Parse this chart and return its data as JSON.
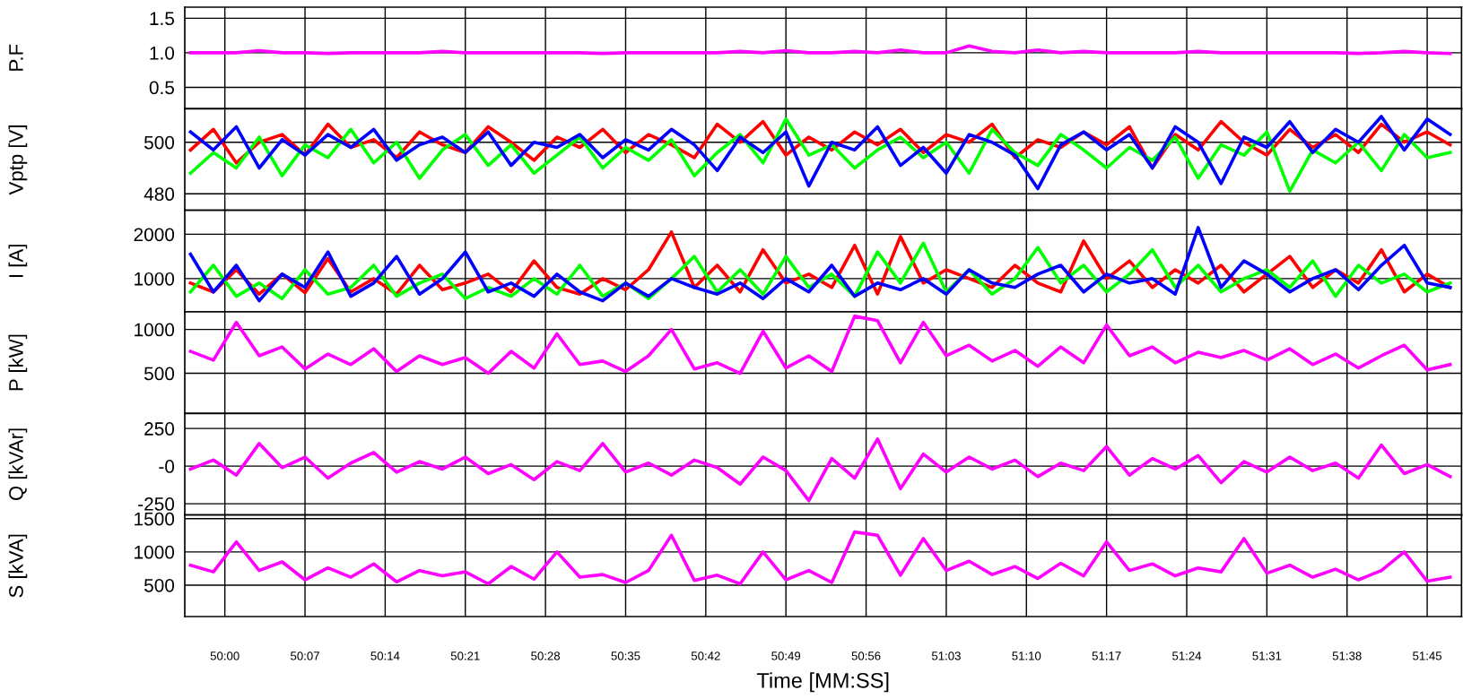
{
  "chart_data": [
    {
      "type": "line",
      "ylabel": "P.F",
      "x": [
        2997,
        2999,
        3001,
        3003,
        3005,
        3007,
        3009,
        3011,
        3013,
        3015,
        3017,
        3019,
        3021,
        3023,
        3025,
        3027,
        3029,
        3031,
        3033,
        3035,
        3037,
        3039,
        3041,
        3043,
        3045,
        3047,
        3049,
        3051,
        3053,
        3055,
        3057,
        3059,
        3061,
        3063,
        3065,
        3067,
        3069,
        3071,
        3073,
        3075,
        3077,
        3079,
        3081,
        3083,
        3085,
        3087,
        3089,
        3091,
        3093,
        3095,
        3097,
        3099,
        3101,
        3103,
        3105,
        3107
      ],
      "xlim": [
        2996.5,
        3108
      ],
      "xticks": [
        {
          "value": 3000,
          "label": null
        },
        {
          "value": 3007,
          "label": null
        },
        {
          "value": 3014,
          "label": null
        },
        {
          "value": 3021,
          "label": null
        },
        {
          "value": 3028,
          "label": null
        },
        {
          "value": 3035,
          "label": null
        },
        {
          "value": 3042,
          "label": null
        },
        {
          "value": 3049,
          "label": null
        },
        {
          "value": 3056,
          "label": null
        },
        {
          "value": 3063,
          "label": null
        },
        {
          "value": 3070,
          "label": null
        },
        {
          "value": 3077,
          "label": null
        },
        {
          "value": 3084,
          "label": null
        },
        {
          "value": 3091,
          "label": null
        },
        {
          "value": 3098,
          "label": null
        },
        {
          "value": 3105,
          "label": null
        }
      ],
      "ylim": [
        0.19,
        1.66
      ],
      "yticks": [
        0.5,
        {
          "value": 1,
          "label": "1.0"
        },
        1.5
      ],
      "grid": true,
      "tick_labels": "y",
      "series": [
        {
          "color": "#ff00ff",
          "values": [
            1.0,
            1.0,
            1.0,
            1.03,
            1.0,
            1.0,
            0.99,
            1.0,
            1.0,
            1.0,
            1.0,
            1.02,
            1.0,
            1.0,
            1.0,
            1.0,
            1.0,
            1.0,
            0.99,
            1.0,
            1.0,
            1.0,
            1.0,
            1.0,
            1.02,
            1.0,
            1.03,
            1.0,
            1.0,
            1.02,
            1.0,
            1.04,
            1.0,
            1.0,
            1.1,
            1.02,
            1.0,
            1.04,
            1.0,
            1.02,
            1.0,
            1.0,
            1.0,
            1.0,
            1.02,
            1.0,
            1.0,
            1.0,
            1.0,
            1.0,
            1.0,
            0.99,
            1.0,
            1.02,
            1.0,
            0.99
          ]
        }
      ]
    },
    {
      "type": "line",
      "ylabel": "Vptp [V]",
      "x": [
        2997,
        2999,
        3001,
        3003,
        3005,
        3007,
        3009,
        3011,
        3013,
        3015,
        3017,
        3019,
        3021,
        3023,
        3025,
        3027,
        3029,
        3031,
        3033,
        3035,
        3037,
        3039,
        3041,
        3043,
        3045,
        3047,
        3049,
        3051,
        3053,
        3055,
        3057,
        3059,
        3061,
        3063,
        3065,
        3067,
        3069,
        3071,
        3073,
        3075,
        3077,
        3079,
        3081,
        3083,
        3085,
        3087,
        3089,
        3091,
        3093,
        3095,
        3097,
        3099,
        3101,
        3103,
        3105,
        3107
      ],
      "xlim": [
        2996.5,
        3108
      ],
      "xticks": [
        {
          "value": 3000,
          "label": null
        },
        {
          "value": 3007,
          "label": null
        },
        {
          "value": 3014,
          "label": null
        },
        {
          "value": 3021,
          "label": null
        },
        {
          "value": 3028,
          "label": null
        },
        {
          "value": 3035,
          "label": null
        },
        {
          "value": 3042,
          "label": null
        },
        {
          "value": 3049,
          "label": null
        },
        {
          "value": 3056,
          "label": null
        },
        {
          "value": 3063,
          "label": null
        },
        {
          "value": 3070,
          "label": null
        },
        {
          "value": 3077,
          "label": null
        },
        {
          "value": 3084,
          "label": null
        },
        {
          "value": 3091,
          "label": null
        },
        {
          "value": 3098,
          "label": null
        },
        {
          "value": 3105,
          "label": null
        }
      ],
      "ylim": [
        473.6,
        513
      ],
      "yticks": [
        480,
        500
      ],
      "grid": true,
      "tick_labels": "y",
      "series": [
        {
          "color": "#ff0000",
          "values": [
            497,
            505,
            492,
            500,
            503,
            495,
            507,
            498,
            501,
            494,
            504,
            499,
            496,
            506,
            500,
            493,
            502,
            498,
            505,
            496,
            503,
            499,
            494,
            507,
            500,
            508,
            495,
            502,
            497,
            504,
            499,
            505,
            496,
            503,
            500,
            507,
            494,
            501,
            498,
            504,
            499,
            506,
            490,
            503,
            497,
            508,
            500,
            495,
            505,
            498,
            503,
            496,
            507,
            500,
            504,
            499
          ]
        },
        {
          "color": "#00ff00",
          "values": [
            488,
            496,
            490,
            502,
            487,
            499,
            494,
            505,
            492,
            500,
            486,
            497,
            503,
            491,
            499,
            488,
            495,
            502,
            490,
            498,
            493,
            501,
            487,
            496,
            503,
            492,
            509,
            495,
            499,
            490,
            497,
            502,
            494,
            500,
            488,
            505,
            496,
            491,
            503,
            497,
            490,
            498,
            493,
            502,
            486,
            499,
            495,
            504,
            481,
            497,
            492,
            500,
            489,
            503,
            494,
            496
          ]
        },
        {
          "color": "#0000ff",
          "values": [
            504,
            497,
            506,
            490,
            501,
            495,
            503,
            498,
            505,
            493,
            499,
            502,
            496,
            504,
            491,
            500,
            498,
            503,
            494,
            501,
            497,
            505,
            499,
            489,
            502,
            496,
            504,
            483,
            500,
            497,
            506,
            491,
            498,
            488,
            503,
            500,
            495,
            482,
            499,
            504,
            497,
            503,
            490,
            506,
            500,
            484,
            502,
            498,
            508,
            496,
            505,
            500,
            510,
            497,
            509,
            503
          ]
        }
      ]
    },
    {
      "type": "line",
      "ylabel": "I [A]",
      "x": [
        2997,
        2999,
        3001,
        3003,
        3005,
        3007,
        3009,
        3011,
        3013,
        3015,
        3017,
        3019,
        3021,
        3023,
        3025,
        3027,
        3029,
        3031,
        3033,
        3035,
        3037,
        3039,
        3041,
        3043,
        3045,
        3047,
        3049,
        3051,
        3053,
        3055,
        3057,
        3059,
        3061,
        3063,
        3065,
        3067,
        3069,
        3071,
        3073,
        3075,
        3077,
        3079,
        3081,
        3083,
        3085,
        3087,
        3089,
        3091,
        3093,
        3095,
        3097,
        3099,
        3101,
        3103,
        3105,
        3107
      ],
      "xlim": [
        2996.5,
        3108
      ],
      "xticks": [
        {
          "value": 3000,
          "label": null
        },
        {
          "value": 3007,
          "label": null
        },
        {
          "value": 3014,
          "label": null
        },
        {
          "value": 3021,
          "label": null
        },
        {
          "value": 3028,
          "label": null
        },
        {
          "value": 3035,
          "label": null
        },
        {
          "value": 3042,
          "label": null
        },
        {
          "value": 3049,
          "label": null
        },
        {
          "value": 3056,
          "label": null
        },
        {
          "value": 3063,
          "label": null
        },
        {
          "value": 3070,
          "label": null
        },
        {
          "value": 3077,
          "label": null
        },
        {
          "value": 3084,
          "label": null
        },
        {
          "value": 3091,
          "label": null
        },
        {
          "value": 3098,
          "label": null
        },
        {
          "value": 3105,
          "label": null
        }
      ],
      "ylim": [
        250,
        2540
      ],
      "yticks": [
        1000,
        2000
      ],
      "grid": true,
      "tick_labels": "y",
      "series": [
        {
          "color": "#ff0000",
          "values": [
            900,
            700,
            1200,
            650,
            1100,
            680,
            1450,
            700,
            1000,
            650,
            1300,
            750,
            900,
            1100,
            700,
            1400,
            800,
            650,
            1000,
            750,
            1200,
            2050,
            800,
            1300,
            700,
            1650,
            900,
            1100,
            800,
            1750,
            650,
            1950,
            900,
            1200,
            1000,
            800,
            1300,
            900,
            700,
            1850,
            1000,
            1400,
            800,
            1200,
            900,
            1300,
            700,
            1100,
            1500,
            800,
            1200,
            900,
            1650,
            700,
            1100,
            800
          ]
        },
        {
          "color": "#00ff00",
          "values": [
            700,
            1300,
            600,
            900,
            550,
            1200,
            650,
            800,
            1300,
            600,
            900,
            1100,
            550,
            800,
            600,
            1000,
            650,
            1300,
            600,
            900,
            550,
            1000,
            1500,
            700,
            1200,
            650,
            1500,
            800,
            1100,
            600,
            1600,
            900,
            1800,
            700,
            1200,
            650,
            1000,
            1700,
            900,
            1300,
            700,
            1100,
            1650,
            800,
            1300,
            700,
            1000,
            1200,
            800,
            1400,
            600,
            1300,
            900,
            1100,
            700,
            900
          ]
        },
        {
          "color": "#0000ff",
          "values": [
            1550,
            700,
            1300,
            500,
            1100,
            800,
            1600,
            600,
            900,
            1500,
            650,
            1000,
            1600,
            700,
            900,
            600,
            1100,
            700,
            500,
            900,
            600,
            1000,
            800,
            650,
            900,
            550,
            1000,
            700,
            1300,
            600,
            900,
            750,
            1000,
            650,
            1200,
            900,
            800,
            1100,
            1300,
            700,
            1100,
            900,
            1000,
            650,
            2150,
            800,
            1400,
            1100,
            700,
            1000,
            1200,
            750,
            1300,
            1750,
            900,
            800
          ]
        }
      ]
    },
    {
      "type": "line",
      "ylabel": "P [kW]",
      "x": [
        2997,
        2999,
        3001,
        3003,
        3005,
        3007,
        3009,
        3011,
        3013,
        3015,
        3017,
        3019,
        3021,
        3023,
        3025,
        3027,
        3029,
        3031,
        3033,
        3035,
        3037,
        3039,
        3041,
        3043,
        3045,
        3047,
        3049,
        3051,
        3053,
        3055,
        3057,
        3059,
        3061,
        3063,
        3065,
        3067,
        3069,
        3071,
        3073,
        3075,
        3077,
        3079,
        3081,
        3083,
        3085,
        3087,
        3089,
        3091,
        3093,
        3095,
        3097,
        3099,
        3101,
        3103,
        3105,
        3107
      ],
      "xlim": [
        2996.5,
        3108
      ],
      "xticks": [
        {
          "value": 3000,
          "label": null
        },
        {
          "value": 3007,
          "label": null
        },
        {
          "value": 3014,
          "label": null
        },
        {
          "value": 3021,
          "label": null
        },
        {
          "value": 3028,
          "label": null
        },
        {
          "value": 3035,
          "label": null
        },
        {
          "value": 3042,
          "label": null
        },
        {
          "value": 3049,
          "label": null
        },
        {
          "value": 3056,
          "label": null
        },
        {
          "value": 3063,
          "label": null
        },
        {
          "value": 3070,
          "label": null
        },
        {
          "value": 3077,
          "label": null
        },
        {
          "value": 3084,
          "label": null
        },
        {
          "value": 3091,
          "label": null
        },
        {
          "value": 3098,
          "label": null
        },
        {
          "value": 3105,
          "label": null
        }
      ],
      "ylim": [
        43,
        1200
      ],
      "yticks": [
        500,
        1000
      ],
      "grid": true,
      "tick_labels": "y",
      "series": [
        {
          "color": "#ff00ff",
          "values": [
            750,
            650,
            1080,
            700,
            800,
            550,
            720,
            600,
            780,
            520,
            700,
            600,
            680,
            500,
            750,
            560,
            950,
            600,
            640,
            520,
            700,
            1000,
            550,
            620,
            500,
            980,
            560,
            700,
            520,
            1150,
            1100,
            620,
            1080,
            700,
            820,
            640,
            760,
            580,
            800,
            620,
            1050,
            700,
            800,
            620,
            740,
            680,
            760,
            650,
            780,
            600,
            720,
            560,
            700,
            820,
            540,
            600
          ]
        }
      ]
    },
    {
      "type": "line",
      "ylabel": "Q [kVAr]",
      "x": [
        2997,
        2999,
        3001,
        3003,
        3005,
        3007,
        3009,
        3011,
        3013,
        3015,
        3017,
        3019,
        3021,
        3023,
        3025,
        3027,
        3029,
        3031,
        3033,
        3035,
        3037,
        3039,
        3041,
        3043,
        3045,
        3047,
        3049,
        3051,
        3053,
        3055,
        3057,
        3059,
        3061,
        3063,
        3065,
        3067,
        3069,
        3071,
        3073,
        3075,
        3077,
        3079,
        3081,
        3083,
        3085,
        3087,
        3089,
        3091,
        3093,
        3095,
        3097,
        3099,
        3101,
        3103,
        3105,
        3107
      ],
      "xlim": [
        2996.5,
        3108
      ],
      "xticks": [
        {
          "value": 3000,
          "label": null
        },
        {
          "value": 3007,
          "label": null
        },
        {
          "value": 3014,
          "label": null
        },
        {
          "value": 3021,
          "label": null
        },
        {
          "value": 3028,
          "label": null
        },
        {
          "value": 3035,
          "label": null
        },
        {
          "value": 3042,
          "label": null
        },
        {
          "value": 3049,
          "label": null
        },
        {
          "value": 3056,
          "label": null
        },
        {
          "value": 3063,
          "label": null
        },
        {
          "value": 3070,
          "label": null
        },
        {
          "value": 3077,
          "label": null
        },
        {
          "value": 3084,
          "label": null
        },
        {
          "value": 3091,
          "label": null
        },
        {
          "value": 3098,
          "label": null
        },
        {
          "value": 3105,
          "label": null
        }
      ],
      "ylim": [
        -325,
        350
      ],
      "yticks": [
        -250,
        {
          "value": 0,
          "label": "-0"
        },
        250
      ],
      "grid": true,
      "tick_labels": "y",
      "series": [
        {
          "color": "#ff00ff",
          "values": [
            -20,
            40,
            -60,
            150,
            -10,
            60,
            -80,
            20,
            90,
            -40,
            30,
            -20,
            60,
            -50,
            10,
            -90,
            30,
            -30,
            150,
            -40,
            20,
            -60,
            40,
            -10,
            -120,
            60,
            -30,
            -230,
            50,
            -80,
            180,
            -150,
            80,
            -40,
            60,
            -20,
            40,
            -70,
            20,
            -30,
            130,
            -60,
            50,
            -20,
            70,
            -110,
            30,
            -40,
            60,
            -30,
            20,
            -80,
            140,
            -50,
            10,
            -70
          ]
        }
      ]
    },
    {
      "type": "line",
      "ylabel": "S [kVA]",
      "xlabel": "Time [MM:SS]",
      "x": [
        2997,
        2999,
        3001,
        3003,
        3005,
        3007,
        3009,
        3011,
        3013,
        3015,
        3017,
        3019,
        3021,
        3023,
        3025,
        3027,
        3029,
        3031,
        3033,
        3035,
        3037,
        3039,
        3041,
        3043,
        3045,
        3047,
        3049,
        3051,
        3053,
        3055,
        3057,
        3059,
        3061,
        3063,
        3065,
        3067,
        3069,
        3071,
        3073,
        3075,
        3077,
        3079,
        3081,
        3083,
        3085,
        3087,
        3089,
        3091,
        3093,
        3095,
        3097,
        3099,
        3101,
        3103,
        3105,
        3107
      ],
      "xlim": [
        2996.5,
        3108
      ],
      "xticks": [
        {
          "value": 3000,
          "label": "50:00"
        },
        {
          "value": 3007,
          "label": "50:07"
        },
        {
          "value": 3014,
          "label": "50:14"
        },
        {
          "value": 3021,
          "label": "50:21"
        },
        {
          "value": 3028,
          "label": "50:28"
        },
        {
          "value": 3035,
          "label": "50:35"
        },
        {
          "value": 3042,
          "label": "50:42"
        },
        {
          "value": 3049,
          "label": "50:49"
        },
        {
          "value": 3056,
          "label": "50:56"
        },
        {
          "value": 3063,
          "label": "51:03"
        },
        {
          "value": 3070,
          "label": "51:10"
        },
        {
          "value": 3077,
          "label": "51:17"
        },
        {
          "value": 3084,
          "label": "51:24"
        },
        {
          "value": 3091,
          "label": "51:31"
        },
        {
          "value": 3098,
          "label": "51:38"
        },
        {
          "value": 3105,
          "label": "51:45"
        }
      ],
      "ylim": [
        28,
        1555
      ],
      "yticks": [
        500,
        1000,
        1500
      ],
      "grid": true,
      "series": [
        {
          "color": "#ff00ff",
          "values": [
            800,
            700,
            1150,
            720,
            850,
            580,
            760,
            620,
            820,
            550,
            720,
            640,
            700,
            520,
            780,
            590,
            1000,
            620,
            660,
            540,
            720,
            1250,
            570,
            650,
            520,
            1000,
            580,
            720,
            540,
            1300,
            1250,
            650,
            1200,
            720,
            860,
            660,
            780,
            600,
            830,
            640,
            1150,
            720,
            820,
            640,
            760,
            700,
            1200,
            680,
            800,
            620,
            740,
            580,
            720,
            1000,
            560,
            620
          ]
        }
      ]
    }
  ]
}
